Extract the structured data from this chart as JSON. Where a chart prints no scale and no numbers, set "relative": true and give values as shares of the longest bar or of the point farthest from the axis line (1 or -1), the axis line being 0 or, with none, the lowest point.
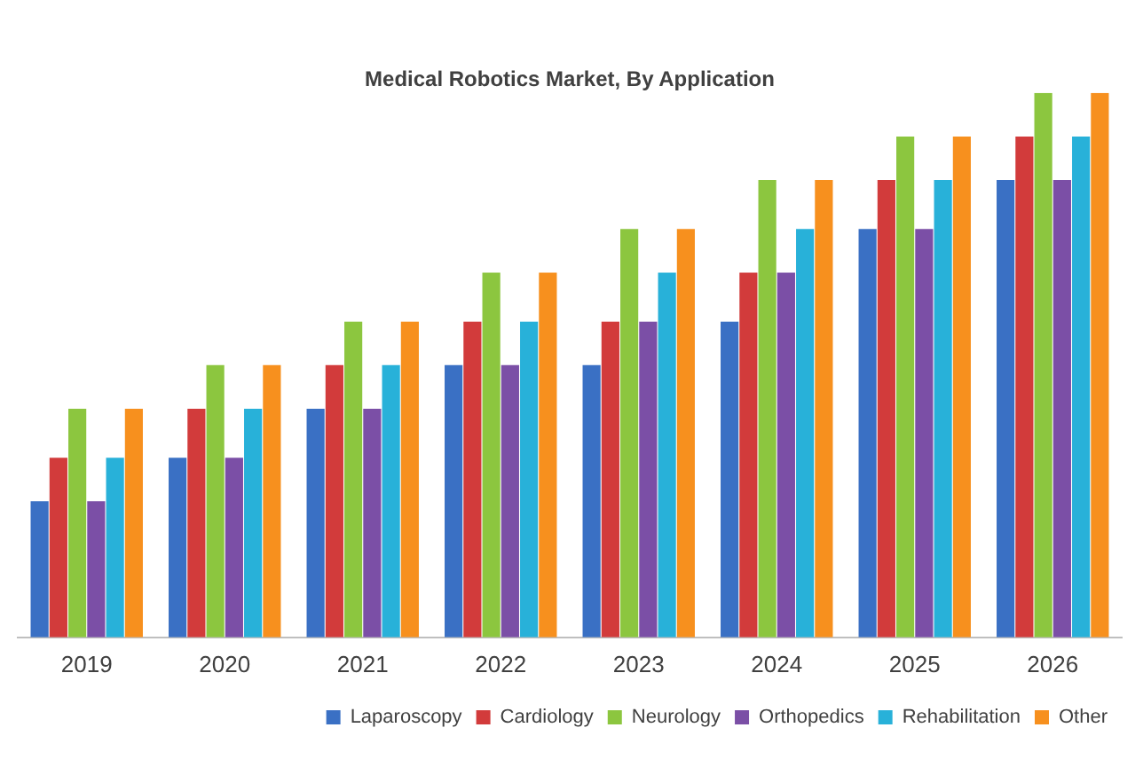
{
  "chart_data": {
    "type": "bar",
    "title": "Medical Robotics Market, By Application",
    "relative": true,
    "categories": [
      "2019",
      "2020",
      "2021",
      "2022",
      "2023",
      "2024",
      "2025",
      "2026"
    ],
    "series": [
      {
        "name": "Laparoscopy",
        "color": "#3a70c4",
        "values": [
          0.25,
          0.33,
          0.42,
          0.5,
          0.5,
          0.58,
          0.75,
          0.84
        ]
      },
      {
        "name": "Cardiology",
        "color": "#d23b3b",
        "values": [
          0.33,
          0.42,
          0.5,
          0.58,
          0.58,
          0.67,
          0.84,
          0.92
        ]
      },
      {
        "name": "Neurology",
        "color": "#8cc63f",
        "values": [
          0.42,
          0.5,
          0.58,
          0.67,
          0.75,
          0.84,
          0.92,
          1
        ]
      },
      {
        "name": "Orthopedics",
        "color": "#7b4fa6",
        "values": [
          0.25,
          0.33,
          0.42,
          0.5,
          0.58,
          0.67,
          0.75,
          0.84
        ]
      },
      {
        "name": "Rehabilitation",
        "color": "#28b1d9",
        "values": [
          0.33,
          0.42,
          0.5,
          0.58,
          0.67,
          0.75,
          0.84,
          0.92
        ]
      },
      {
        "name": "Other",
        "color": "#f7901e",
        "values": [
          0.42,
          0.5,
          0.58,
          0.67,
          0.75,
          0.84,
          0.92,
          1
        ]
      }
    ],
    "legend": "bottom right",
    "grid": false
  }
}
